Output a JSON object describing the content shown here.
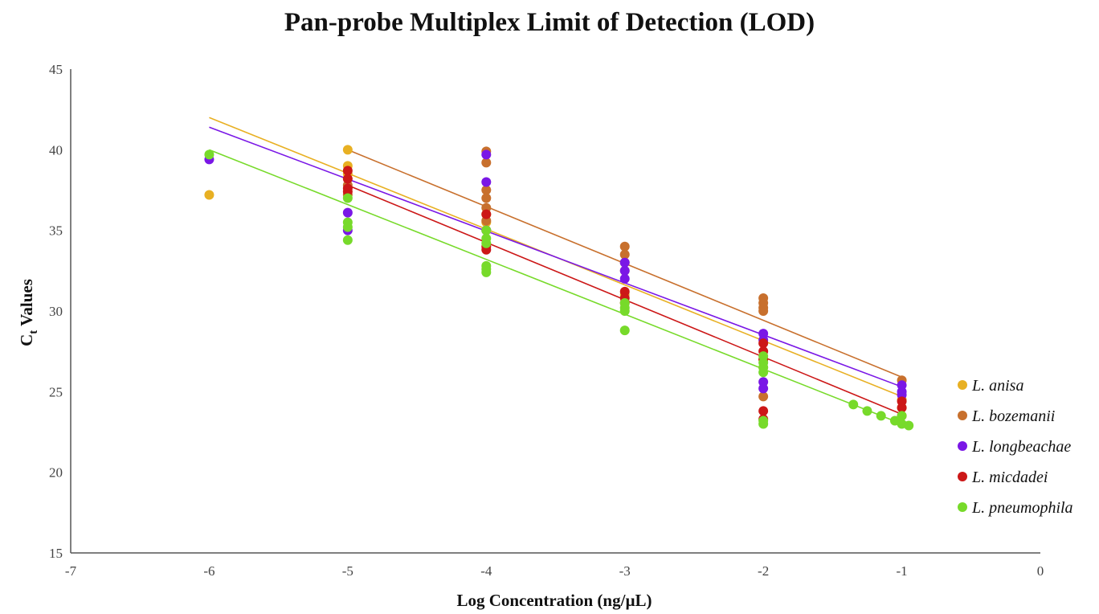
{
  "chart_data": {
    "type": "scatter",
    "title": "Pan-probe Multiplex Limit of Detection (LOD)",
    "xlabel": "Log Concentration (ng/µL)",
    "ylabel_main": "C",
    "ylabel_sub": "t",
    "ylabel_rest": " Values",
    "xlim": [
      -7,
      0
    ],
    "ylim": [
      15,
      45
    ],
    "xticks": [
      -7,
      -6,
      -5,
      -4,
      -3,
      -2,
      -1,
      0
    ],
    "yticks": [
      15,
      20,
      25,
      30,
      35,
      40,
      45
    ],
    "xtick_labels": [
      "-7",
      "-6",
      "-5",
      "-4",
      "-3",
      "-2",
      "-1",
      "0"
    ],
    "ytick_labels": [
      "15",
      "20",
      "25",
      "30",
      "35",
      "40",
      "45"
    ],
    "grid": false,
    "legend_position": "right",
    "series": [
      {
        "name": "L. anisa",
        "color": "#E8B023",
        "trendline": [
          [
            -6,
            42.0
          ],
          [
            -1,
            24.7
          ]
        ],
        "points": [
          [
            -6,
            37.2
          ],
          [
            -5,
            40.0
          ],
          [
            -5,
            39.0
          ],
          [
            -5,
            38.5
          ],
          [
            -4,
            36.0
          ],
          [
            -4,
            35.5
          ],
          [
            -4,
            35.0
          ],
          [
            -3,
            32.5
          ],
          [
            -3,
            31.0
          ],
          [
            -2,
            27.0
          ],
          [
            -2,
            26.5
          ],
          [
            -1,
            24.5
          ],
          [
            -1,
            24.0
          ]
        ]
      },
      {
        "name": "L. bozemanii",
        "color": "#C8702D",
        "trendline": [
          [
            -5,
            40.0
          ],
          [
            -1,
            25.9
          ]
        ],
        "points": [
          [
            -5,
            37.8
          ],
          [
            -5,
            37.2
          ],
          [
            -4,
            39.9
          ],
          [
            -4,
            39.2
          ],
          [
            -4,
            37.5
          ],
          [
            -4,
            37.0
          ],
          [
            -4,
            36.4
          ],
          [
            -4,
            35.6
          ],
          [
            -3,
            34.0
          ],
          [
            -3,
            33.5
          ],
          [
            -3,
            33.0
          ],
          [
            -2,
            30.8
          ],
          [
            -2,
            30.5
          ],
          [
            -2,
            30.2
          ],
          [
            -2,
            30.0
          ],
          [
            -2,
            24.7
          ],
          [
            -1,
            25.7
          ]
        ]
      },
      {
        "name": "L. longbeachae",
        "color": "#7A17E6",
        "trendline": [
          [
            -6,
            41.4
          ],
          [
            -1,
            25.3
          ]
        ],
        "points": [
          [
            -6,
            39.4
          ],
          [
            -5,
            36.1
          ],
          [
            -5,
            35.0
          ],
          [
            -4,
            39.7
          ],
          [
            -4,
            38.0
          ],
          [
            -4,
            35.0
          ],
          [
            -3,
            33.0
          ],
          [
            -3,
            32.5
          ],
          [
            -3,
            32.0
          ],
          [
            -2,
            28.6
          ],
          [
            -2,
            28.2
          ],
          [
            -2,
            25.6
          ],
          [
            -2,
            25.2
          ],
          [
            -1,
            25.4
          ],
          [
            -1,
            25.0
          ],
          [
            -1,
            24.8
          ]
        ]
      },
      {
        "name": "L. micdadei",
        "color": "#CC1717",
        "trendline": [
          [
            -5,
            37.8
          ],
          [
            -1,
            23.6
          ]
        ],
        "points": [
          [
            -5,
            38.7
          ],
          [
            -5,
            38.2
          ],
          [
            -5,
            37.6
          ],
          [
            -5,
            37.4
          ],
          [
            -4,
            36.0
          ],
          [
            -4,
            34.0
          ],
          [
            -4,
            33.8
          ],
          [
            -3,
            31.2
          ],
          [
            -3,
            30.8
          ],
          [
            -3,
            30.5
          ],
          [
            -2,
            28.0
          ],
          [
            -2,
            27.5
          ],
          [
            -2,
            27.0
          ],
          [
            -2,
            23.8
          ],
          [
            -2,
            23.3
          ],
          [
            -1,
            24.4
          ],
          [
            -1,
            24.0
          ],
          [
            -1,
            23.5
          ]
        ]
      },
      {
        "name": "L. pneumophila",
        "color": "#77DA2A",
        "trendline": [
          [
            -6,
            40.0
          ],
          [
            -1,
            23.0
          ]
        ],
        "points": [
          [
            -6,
            39.7
          ],
          [
            -5,
            37.0
          ],
          [
            -5,
            35.5
          ],
          [
            -5,
            35.2
          ],
          [
            -5,
            34.4
          ],
          [
            -4,
            35.0
          ],
          [
            -4,
            34.5
          ],
          [
            -4,
            34.2
          ],
          [
            -4,
            32.8
          ],
          [
            -4,
            32.6
          ],
          [
            -4,
            32.4
          ],
          [
            -3,
            30.5
          ],
          [
            -3,
            30.2
          ],
          [
            -3,
            30.0
          ],
          [
            -3,
            28.8
          ],
          [
            -2,
            27.2
          ],
          [
            -2,
            26.8
          ],
          [
            -2,
            26.5
          ],
          [
            -2,
            26.2
          ],
          [
            -2,
            23.2
          ],
          [
            -2,
            23.0
          ],
          [
            -1.35,
            24.2
          ],
          [
            -1.25,
            23.8
          ],
          [
            -1.15,
            23.5
          ],
          [
            -1.05,
            23.2
          ],
          [
            -1,
            23.5
          ],
          [
            -1,
            23.0
          ],
          [
            -0.95,
            22.9
          ]
        ]
      }
    ]
  }
}
